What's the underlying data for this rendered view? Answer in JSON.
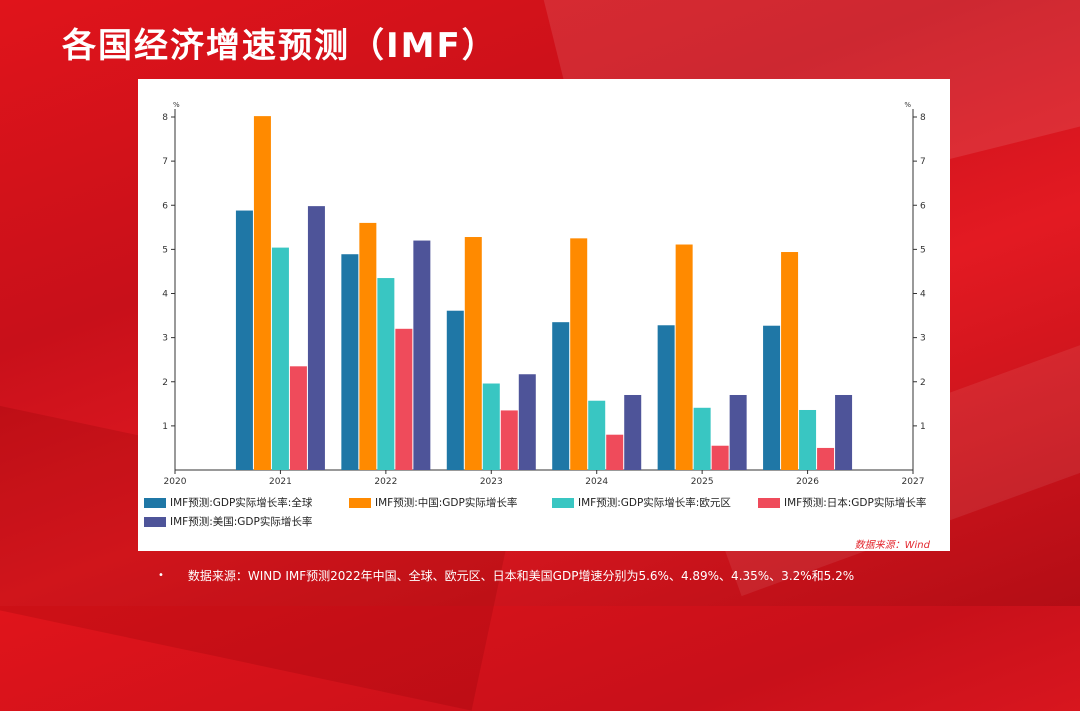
{
  "title": "各国经济增速预测（IMF）",
  "panel_source": "数据来源：Wind",
  "footnote": "数据来源：WIND   IMF预测2022年中国、全球、欧元区、日本和美国GDP增速分别为5.6%、4.89%、4.35%、3.2%和5.2%",
  "bullet": "•",
  "colors": {
    "global": "#1f77a6",
    "china": "#ff8a00",
    "euro": "#39c6c2",
    "japan": "#ef4b5b",
    "us": "#4e5499"
  },
  "chart_data": {
    "type": "bar",
    "title": "",
    "xlabel": "",
    "ylabel": "%",
    "ylabel_right": "%",
    "ylim": [
      0,
      8
    ],
    "yticks": [
      1,
      2,
      3,
      4,
      5,
      6,
      7,
      8
    ],
    "x_axis_ticks": [
      "2020",
      "2021",
      "2022",
      "2023",
      "2024",
      "2025",
      "2026",
      "2027"
    ],
    "categories": [
      "2021",
      "2022",
      "2023",
      "2024",
      "2025",
      "2026"
    ],
    "grid": false,
    "legend_position": "bottom",
    "series": [
      {
        "name": "IMF预测:GDP实际增长率:全球",
        "color": "#1f77a6",
        "values": [
          5.88,
          4.89,
          3.61,
          3.35,
          3.28,
          3.27
        ]
      },
      {
        "name": "IMF预测:中国:GDP实际增长率",
        "color": "#ff8a00",
        "values": [
          8.02,
          5.6,
          5.28,
          5.25,
          5.11,
          4.94
        ]
      },
      {
        "name": "IMF预测:GDP实际增长率:欧元区",
        "color": "#39c6c2",
        "values": [
          5.04,
          4.35,
          1.96,
          1.57,
          1.41,
          1.36
        ]
      },
      {
        "name": "IMF预测:日本:GDP实际增长率",
        "color": "#ef4b5b",
        "values": [
          2.35,
          3.2,
          1.35,
          0.8,
          0.55,
          0.5
        ]
      },
      {
        "name": "IMF预测:美国:GDP实际增长率",
        "color": "#4e5499",
        "values": [
          5.98,
          5.2,
          2.17,
          1.7,
          1.7,
          1.7
        ]
      }
    ]
  }
}
